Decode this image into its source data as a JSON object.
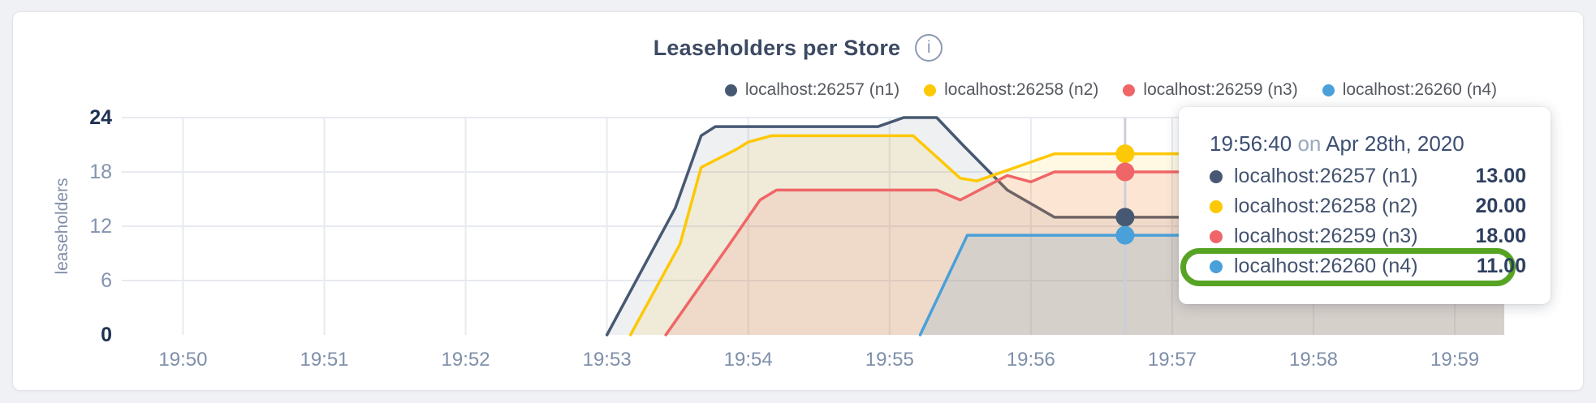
{
  "header": {
    "title": "Leaseholders per Store",
    "info_icon": "i"
  },
  "axis": {
    "ylabel": "leaseholders"
  },
  "legend": {
    "items": [
      {
        "label": "localhost:26257 (n1)",
        "color": "#475872"
      },
      {
        "label": "localhost:26258 (n2)",
        "color": "#fdc805"
      },
      {
        "label": "localhost:26259 (n3)",
        "color": "#f06567"
      },
      {
        "label": "localhost:26260 (n4)",
        "color": "#4aa0d9"
      }
    ]
  },
  "chart_data": {
    "type": "area",
    "title": "Leaseholders per Store",
    "xlabel": "",
    "ylabel": "leaseholders",
    "ylim": [
      0,
      24
    ],
    "y_ticks": [
      0,
      6,
      12,
      18,
      24
    ],
    "y_ticks_emphasized": [
      0,
      24
    ],
    "x_ticks": [
      "19:50",
      "19:51",
      "19:52",
      "19:53",
      "19:54",
      "19:55",
      "19:56",
      "19:57",
      "19:58",
      "19:59"
    ],
    "x_domain": [
      "19:49:34",
      "19:59:21"
    ],
    "grid": true,
    "legend_position": "top-right",
    "series": [
      {
        "name": "localhost:26257 (n1)",
        "color": "#475872",
        "fill_opacity": 0.09,
        "points": [
          [
            "19:53:00",
            0
          ],
          [
            "19:53:29",
            14
          ],
          [
            "19:53:40",
            22
          ],
          [
            "19:53:46",
            23
          ],
          [
            "19:54:55",
            23
          ],
          [
            "19:55:06",
            24
          ],
          [
            "19:55:20",
            24
          ],
          [
            "19:55:31",
            21
          ],
          [
            "19:55:50",
            16
          ],
          [
            "19:56:00",
            14.5
          ],
          [
            "19:56:10",
            13
          ],
          [
            "19:59:21",
            13
          ]
        ]
      },
      {
        "name": "localhost:26258 (n2)",
        "color": "#fdc805",
        "fill_opacity": 0.11,
        "points": [
          [
            "19:53:10",
            0
          ],
          [
            "19:53:31",
            10
          ],
          [
            "19:53:40",
            18.5
          ],
          [
            "19:53:55",
            20.5
          ],
          [
            "19:54:00",
            21.3
          ],
          [
            "19:54:10",
            22
          ],
          [
            "19:55:10",
            22
          ],
          [
            "19:55:30",
            17.3
          ],
          [
            "19:55:37",
            17
          ],
          [
            "19:56:10",
            20
          ],
          [
            "19:59:21",
            20
          ]
        ]
      },
      {
        "name": "localhost:26259 (n3)",
        "color": "#f06567",
        "fill_opacity": 0.13,
        "points": [
          [
            "19:53:25",
            0
          ],
          [
            "19:53:52",
            10
          ],
          [
            "19:54:05",
            14.9
          ],
          [
            "19:54:12",
            16
          ],
          [
            "19:55:20",
            16
          ],
          [
            "19:55:30",
            14.9
          ],
          [
            "19:55:50",
            17.6
          ],
          [
            "19:56:00",
            16.9
          ],
          [
            "19:56:10",
            18
          ],
          [
            "19:59:21",
            18
          ]
        ]
      },
      {
        "name": "localhost:26260 (n4)",
        "color": "#4aa0d9",
        "fill_opacity": 0.15,
        "points": [
          [
            "19:55:13",
            0
          ],
          [
            "19:55:33",
            11
          ],
          [
            "19:59:21",
            11
          ]
        ]
      }
    ],
    "crosshair": {
      "time": "19:56:40",
      "values": [
        13,
        20,
        18,
        11
      ]
    }
  },
  "tooltip": {
    "time": "19:56:40",
    "separator": " on ",
    "date": "Apr 28th, 2020",
    "rows": [
      {
        "label": "localhost:26257 (n1)",
        "value": "13.00",
        "color": "#475872",
        "highlighted": false
      },
      {
        "label": "localhost:26258 (n2)",
        "value": "20.00",
        "color": "#fdc805",
        "highlighted": false
      },
      {
        "label": "localhost:26259 (n3)",
        "value": "18.00",
        "color": "#f06567",
        "highlighted": false
      },
      {
        "label": "localhost:26260 (n4)",
        "value": "11.00",
        "color": "#4aa0d9",
        "highlighted": true
      }
    ],
    "highlight_color": "#57a424"
  }
}
